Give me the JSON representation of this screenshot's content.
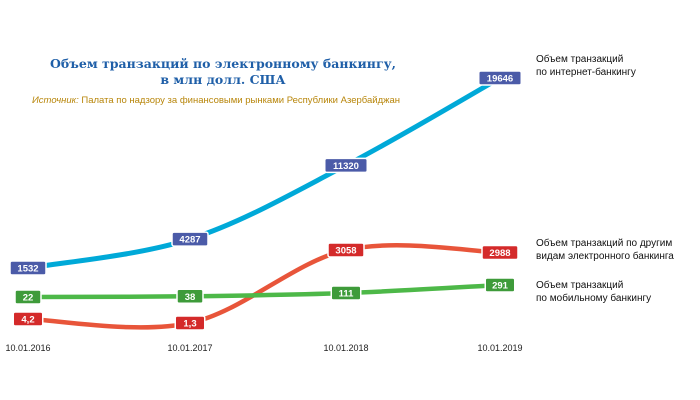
{
  "header": {
    "title_line1": "Объем транзакций по электронному банкингу,",
    "title_line2": "в млн долл. США",
    "source_prefix": "Источник:",
    "source_text": "Палата по надзору за финансовыми рынками Республики Азербайджан"
  },
  "chart_data": {
    "type": "line",
    "title": "Объем транзакций по электронному банкингу, в млн долл. США",
    "categories": [
      "10.01.2016",
      "10.01.2017",
      "10.01.2018",
      "10.01.2019"
    ],
    "series": [
      {
        "name": "Объем транзакций по интернет-банкингу",
        "label_lines": [
          "Объем транзакций",
          "по интернет-банкингу"
        ],
        "color": "#00a9d8",
        "badge_color": "#4b5ba8",
        "values": [
          1532,
          4287,
          11320,
          19646
        ],
        "value_labels": [
          "1532",
          "4287",
          "11320",
          "19646"
        ]
      },
      {
        "name": "Объем транзакций по другим видам электронного банкинга",
        "label_lines": [
          "Объем транзакций по другим",
          "видам электронного банкинга"
        ],
        "color": "#e8553a",
        "badge_color": "#d42a2a",
        "values": [
          4.2,
          1.3,
          3058,
          2988
        ],
        "value_labels": [
          "4,2",
          "1,3",
          "3058",
          "2988"
        ]
      },
      {
        "name": "Объем транзакций по мобильному банкингу",
        "label_lines": [
          "Объем транзакций",
          "по мобильному банкингу"
        ],
        "color": "#4db848",
        "badge_color": "#3e9b3a",
        "values": [
          22,
          38,
          111,
          291
        ],
        "value_labels": [
          "22",
          "38",
          "111",
          "291"
        ]
      }
    ]
  }
}
